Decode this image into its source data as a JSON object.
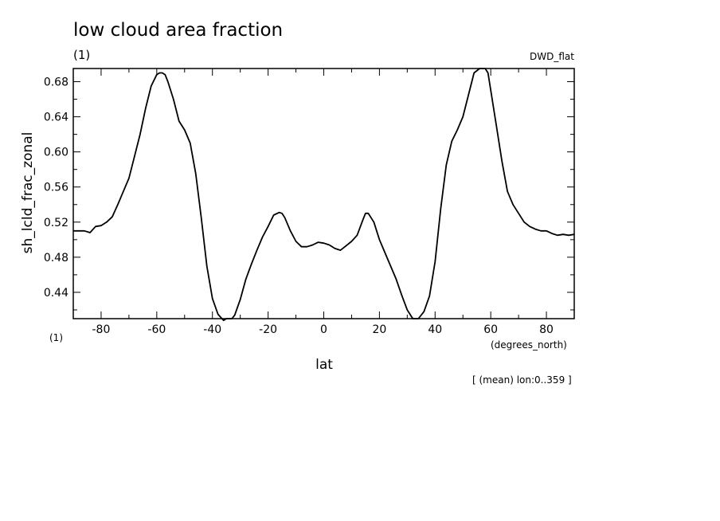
{
  "chart_data": {
    "type": "line",
    "title": "low cloud area fraction",
    "units_label": "(1)",
    "model_label": "DWD_flat",
    "xlabel": "lat",
    "x_units": "(degrees_north)",
    "ylabel": "sh_lcld_frac_zonal",
    "y_units": "(1)",
    "footnote": "[ (mean) lon:0..359 ]",
    "xlim": [
      -90,
      90
    ],
    "ylim": [
      0.41,
      0.695
    ],
    "x_ticks": [
      -80,
      -60,
      -40,
      -20,
      0,
      20,
      40,
      60,
      80
    ],
    "x_tick_labels": [
      "-80",
      "-60",
      "-40",
      "-20",
      "0",
      "20",
      "40",
      "60",
      "80"
    ],
    "y_ticks": [
      0.44,
      0.48,
      0.52,
      0.56,
      0.6,
      0.64,
      0.68
    ],
    "y_tick_labels": [
      "0.44",
      "0.48",
      "0.52",
      "0.56",
      "0.60",
      "0.64",
      "0.68"
    ],
    "series": [
      {
        "x": [
          -90,
          -86,
          -84,
          -82,
          -80,
          -78,
          -76,
          -74,
          -72,
          -70,
          -68,
          -66,
          -64,
          -62,
          -60,
          -59,
          -58,
          -57,
          -56,
          -54,
          -52,
          -50,
          -48,
          -46,
          -44,
          -42,
          -40,
          -38,
          -36,
          -35,
          -34,
          -33,
          -32,
          -30,
          -28,
          -26,
          -24,
          -22,
          -20,
          -18,
          -16,
          -15,
          -14,
          -12,
          -10,
          -8,
          -6,
          -4,
          -2,
          0,
          2,
          4,
          6,
          8,
          10,
          12,
          14,
          15,
          16,
          18,
          20,
          22,
          24,
          26,
          28,
          30,
          32,
          33,
          34,
          36,
          38,
          40,
          42,
          44,
          46,
          48,
          50,
          52,
          54,
          56,
          58,
          59,
          60,
          62,
          64,
          66,
          68,
          70,
          72,
          74,
          76,
          78,
          80,
          82,
          84,
          86,
          88,
          90
        ],
        "y": [
          0.51,
          0.51,
          0.508,
          0.515,
          0.516,
          0.52,
          0.526,
          0.54,
          0.555,
          0.57,
          0.595,
          0.62,
          0.65,
          0.675,
          0.688,
          0.69,
          0.69,
          0.688,
          0.68,
          0.66,
          0.635,
          0.625,
          0.61,
          0.575,
          0.525,
          0.47,
          0.433,
          0.415,
          0.408,
          0.41,
          0.41,
          0.41,
          0.414,
          0.432,
          0.455,
          0.472,
          0.488,
          0.503,
          0.515,
          0.528,
          0.531,
          0.53,
          0.525,
          0.51,
          0.498,
          0.492,
          0.492,
          0.494,
          0.497,
          0.496,
          0.494,
          0.49,
          0.488,
          0.493,
          0.498,
          0.505,
          0.522,
          0.53,
          0.53,
          0.52,
          0.5,
          0.485,
          0.47,
          0.455,
          0.437,
          0.42,
          0.41,
          0.41,
          0.41,
          0.418,
          0.436,
          0.475,
          0.535,
          0.585,
          0.612,
          0.625,
          0.64,
          0.665,
          0.69,
          0.695,
          0.695,
          0.69,
          0.67,
          0.63,
          0.59,
          0.555,
          0.54,
          0.53,
          0.52,
          0.515,
          0.512,
          0.51,
          0.51,
          0.507,
          0.505,
          0.506,
          0.505,
          0.506
        ]
      }
    ]
  }
}
